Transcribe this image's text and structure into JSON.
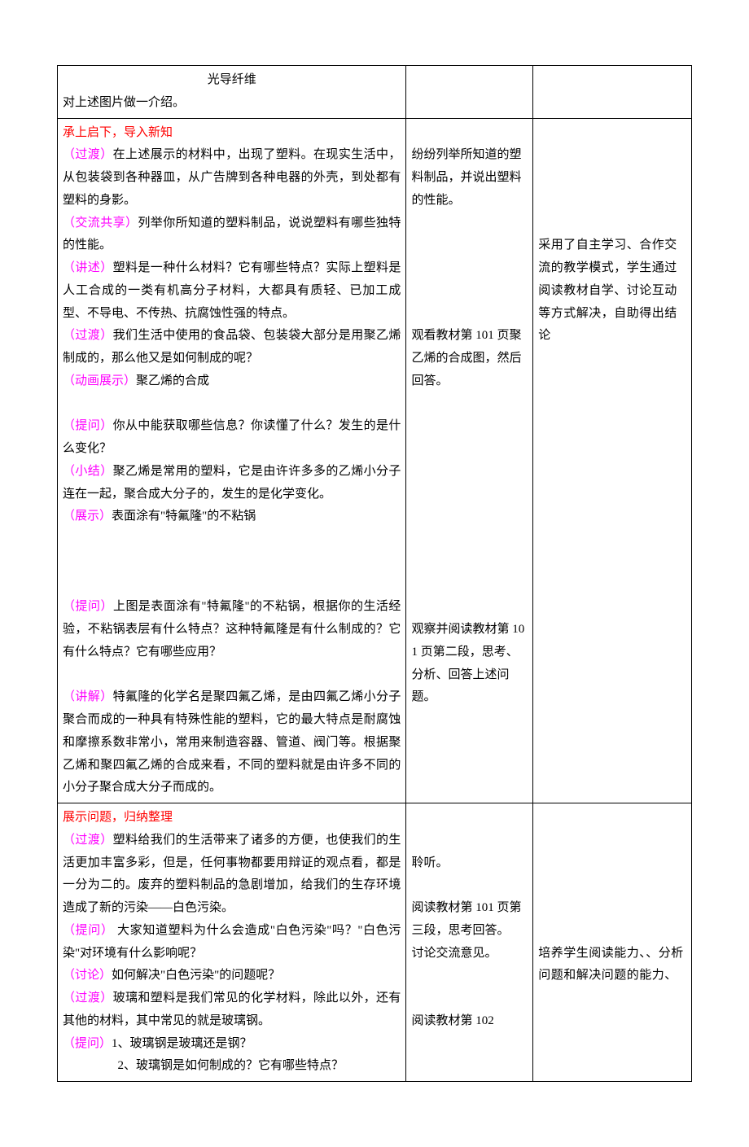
{
  "row1": {
    "c1a": "光导纤维",
    "c1b": "对上述图片做一介绍。"
  },
  "row2": {
    "h": "承上启下，导入新知",
    "t1a": "（过渡）",
    "t1b": "在上述展示的材料中，出现了塑料。在现实生活中，从包装袋到各种器皿，从广告牌到各种电器的外壳，到处都有塑料的身影。",
    "t2a": "（交流共享）",
    "t2b": "列举你所知道的塑料制品，说说塑料有哪些独特的性能。",
    "t3a": "（讲述）",
    "t3b": "塑料是一种什么材料？它有哪些特点？实际上塑料是人工合成的一类有机高分子材料，大都具有质轻、已加工成型、不导电、不传热、抗腐蚀性强的特点。",
    "t4a": "（过渡）",
    "t4b": "我们生活中使用的食品袋、包装袋大部分是用聚乙烯制成的，那么他又是如何制成的呢？",
    "t5a": "（动画展示）",
    "t5b": "聚乙烯的合成",
    "t6a": "（提问）",
    "t6b": "你从中能获取哪些信息？你读懂了什么？发生的是什么变化？",
    "t7a": "（小结）",
    "t7b": "聚乙烯是常用的塑料，它是由许许多多的乙烯小分子连在一起，聚合成大分子的，发生的是化学变化。",
    "t8a": "（展示）",
    "t8b": "表面涂有\"特氟隆\"的不粘锅",
    "t9a": "（提问）",
    "t9b": "上图是表面涂有\"特氟隆\"的不粘锅，根据你的生活经验，不粘锅表层有什么特点？这种特氟隆是有什么制成的？它有什么特点？它有哪些应用？",
    "t10a": "（讲解）",
    "t10b": "特氟隆的化学名是聚四氟乙烯，是由四氟乙烯小分子聚合而成的一种具有特殊性能的塑料，它的最大特点是耐腐蚀和摩擦系数非常小，常用来制造容器、管道、阀门等。根据聚乙烯和聚四氟乙烯的合成来看，不同的塑料就是由许多不同的小分子聚合成大分子而成的。",
    "c2a": "纷纷列举所知道的塑料制品，并说出塑料的性能。",
    "c2b": "观看教材第 101 页聚乙烯的合成图，然后回答。",
    "c2c": "观察并阅读教材第 101 页第二段，思考、分析、回答上述问题。",
    "c3": "采用了自主学习、合作交流的教学模式，学生通过阅读教材自学、讨论互动等方式解决，自助得出结论"
  },
  "row3": {
    "h": "展示问题，归纳整理",
    "t1a": "（过渡）",
    "t1b": "塑料给我们的生活带来了诸多的方便，也使我们的生活更加丰富多彩，但是，任何事物都要用辩证的观点看，都是一分为二的。废弃的塑料制品的急剧增加，给我们的生存环境造成了新的污染——白色污染。",
    "t2a": "（提问）",
    "t2b": "  大家知道塑料为什么会造成\"白色污染\"吗？\"白色污染\"对环境有什么影响呢？",
    "t3a": "（讨论）",
    "t3b": "如何解决\"白色污染\"的问题呢？",
    "t4a": "（过渡）",
    "t4b": "玻璃和塑料是我们常见的化学材料，除此以外，还有其他的材料，其中常见的就是玻璃钢。",
    "t5a": "（提问）",
    "t5b": "1、玻璃钢是玻璃还是钢？",
    "t5c": "2、玻璃钢是如何制成的？它有哪些特点？",
    "c2a": "聆听。",
    "c2b": "阅读教材第 101 页第三段，思考回答。",
    "c2c": "讨论交流意见。",
    "c2d": "阅读教材第 102",
    "c3": "培养学生阅读能力、、分析问题和解决问题的能力、"
  }
}
